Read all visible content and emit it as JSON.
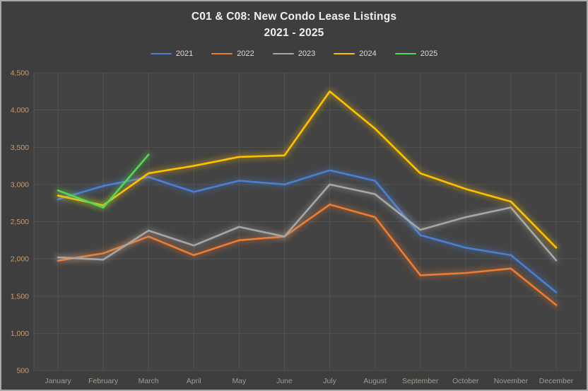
{
  "window": {
    "frame_border_color": "#a9a9a9"
  },
  "chart": {
    "title_line1": "C01 & C08: New Condo Lease Listings",
    "title_line2": "2021 - 2025"
  },
  "chart_data": {
    "type": "line",
    "title": "C01 & C08: New Condo Lease Listings 2021 - 2025",
    "categories": [
      "January",
      "February",
      "March",
      "April",
      "May",
      "June",
      "July",
      "August",
      "September",
      "October",
      "November",
      "December"
    ],
    "series": [
      {
        "name": "2021",
        "color": "#4a7fd4",
        "values": [
          2800,
          2980,
          3100,
          2900,
          3050,
          3000,
          3190,
          3050,
          2320,
          2150,
          2050,
          1550
        ]
      },
      {
        "name": "2022",
        "color": "#ed7d31",
        "values": [
          1975,
          2075,
          2300,
          2050,
          2250,
          2300,
          2730,
          2560,
          1780,
          1810,
          1870,
          1380
        ]
      },
      {
        "name": "2023",
        "color": "#a6a6a6",
        "values": [
          2020,
          1990,
          2380,
          2180,
          2430,
          2300,
          3000,
          2870,
          2390,
          2560,
          2690,
          1980
        ]
      },
      {
        "name": "2024",
        "color": "#ffc000",
        "values": [
          2850,
          2720,
          3150,
          3250,
          3370,
          3390,
          4250,
          3750,
          3150,
          2940,
          2770,
          2150
        ]
      },
      {
        "name": "2025",
        "color": "#53d953",
        "values": [
          2920,
          2690,
          3400
        ]
      }
    ],
    "xlabel": "",
    "ylabel": "",
    "ylim": [
      500,
      4500
    ],
    "yticks": [
      500,
      1000,
      1500,
      2000,
      2500,
      3000,
      3500,
      4000,
      4500
    ],
    "ytick_labels": [
      "500",
      "1,000",
      "1,500",
      "2,000",
      "2,500",
      "3,000",
      "3,500",
      "4,000",
      "4,500"
    ],
    "grid": true,
    "legend_position": "top",
    "line_glow": true
  },
  "colors": {
    "page_background": "#3e3e3e",
    "plot_background": "#434343",
    "gridline": "#525252",
    "plot_border": "#555555",
    "title_text": "#f0f0f0",
    "legend_text": "#dcdcdc",
    "y_axis_label": "#c79e76",
    "x_axis_label": "#a59c8e"
  }
}
